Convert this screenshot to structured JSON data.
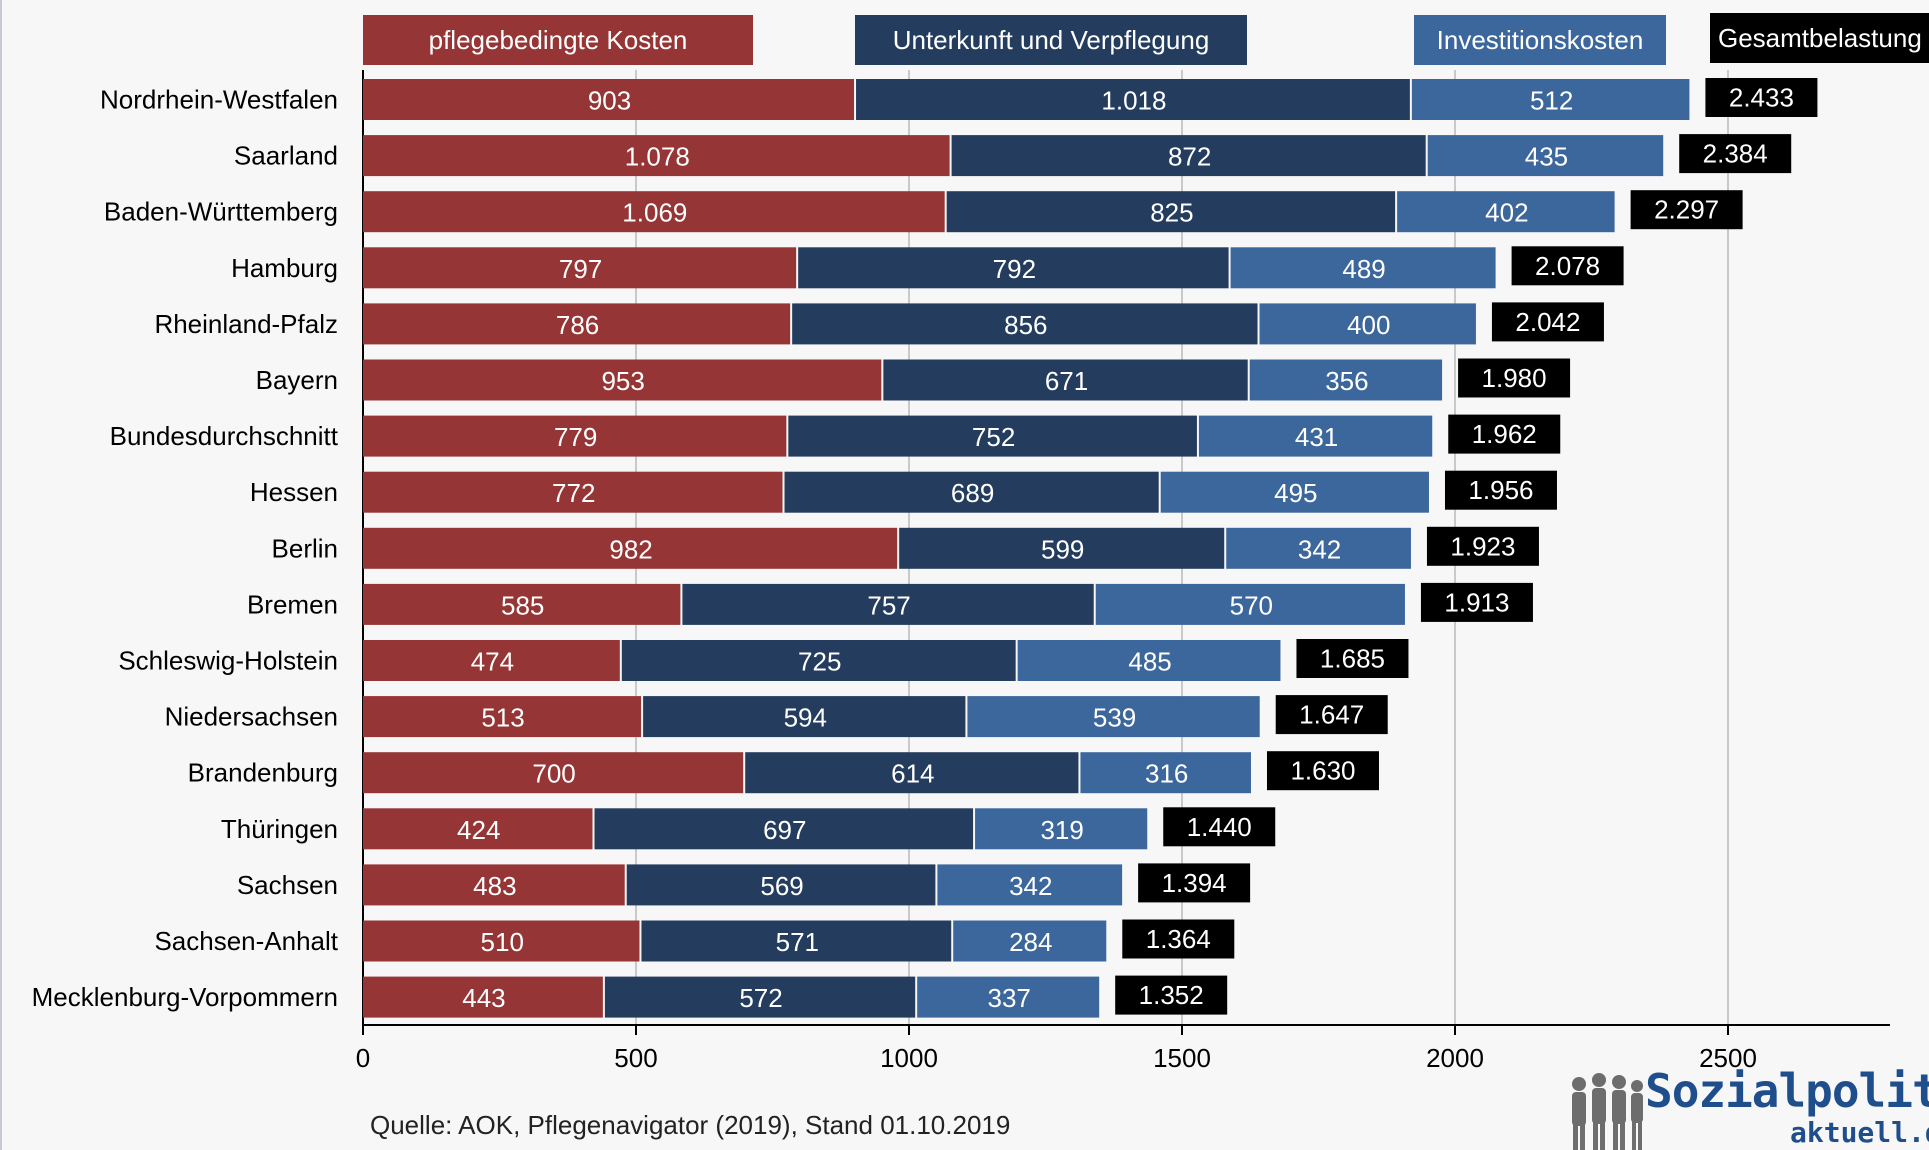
{
  "chart_data": {
    "type": "bar",
    "orientation": "horizontal",
    "stacked": true,
    "categories": [
      "Nordrhein-Westfalen",
      "Saarland",
      "Baden-Württemberg",
      "Hamburg",
      "Rheinland-Pfalz",
      "Bayern",
      "Bundesdurchschnitt",
      "Hessen",
      "Berlin",
      "Bremen",
      "Schleswig-Holstein",
      "Niedersachsen",
      "Brandenburg",
      "Thüringen",
      "Sachsen",
      "Sachsen-Anhalt",
      "Mecklenburg-Vorpommern"
    ],
    "series": [
      {
        "name": "pflegebedingte Kosten",
        "color": "#963535",
        "values": [
          903,
          1078,
          1069,
          797,
          786,
          953,
          779,
          772,
          982,
          585,
          474,
          513,
          700,
          424,
          483,
          510,
          443
        ],
        "labels": [
          "903",
          "1.078",
          "1.069",
          "797",
          "786",
          "953",
          "779",
          "772",
          "982",
          "585",
          "474",
          "513",
          "700",
          "424",
          "483",
          "510",
          "443"
        ]
      },
      {
        "name": "Unterkunft und Verpflegung",
        "color": "#243d5f",
        "values": [
          1018,
          872,
          825,
          792,
          856,
          671,
          752,
          689,
          599,
          757,
          725,
          594,
          614,
          697,
          569,
          571,
          572
        ],
        "labels": [
          "1.018",
          "872",
          "825",
          "792",
          "856",
          "671",
          "752",
          "689",
          "599",
          "757",
          "725",
          "594",
          "614",
          "697",
          "569",
          "571",
          "572"
        ]
      },
      {
        "name": "Investitionskosten",
        "color": "#3c679c",
        "values": [
          512,
          435,
          402,
          489,
          400,
          356,
          431,
          495,
          342,
          570,
          485,
          539,
          316,
          319,
          342,
          284,
          337
        ],
        "labels": [
          "512",
          "435",
          "402",
          "489",
          "400",
          "356",
          "431",
          "495",
          "342",
          "570",
          "485",
          "539",
          "316",
          "319",
          "342",
          "284",
          "337"
        ]
      }
    ],
    "totals": {
      "name": "Gesamtbelastung",
      "color": "#000000",
      "values": [
        2433,
        2384,
        2297,
        2078,
        2042,
        1980,
        1962,
        1956,
        1923,
        1913,
        1685,
        1647,
        1630,
        1440,
        1394,
        1364,
        1352
      ],
      "labels": [
        "2.433",
        "2.384",
        "2.297",
        "2.078",
        "2.042",
        "1.980",
        "1.962",
        "1.956",
        "1.923",
        "1.913",
        "1.685",
        "1.647",
        "1.630",
        "1.440",
        "1.394",
        "1.364",
        "1.352"
      ]
    },
    "x_ticks": [
      0,
      500,
      1000,
      1500,
      2000,
      2500
    ],
    "x_tick_labels": [
      "0",
      "500",
      "1000",
      "1500",
      "2000",
      "2500"
    ],
    "xlim": [
      0,
      2800
    ],
    "grid": "vertical",
    "legend_position": "top"
  },
  "source": "Quelle: AOK, Pflegenavigator (2019), Stand 01.10.2019",
  "logo": {
    "brand": "Sozialpolitik-",
    "sub": "aktuell.de"
  }
}
